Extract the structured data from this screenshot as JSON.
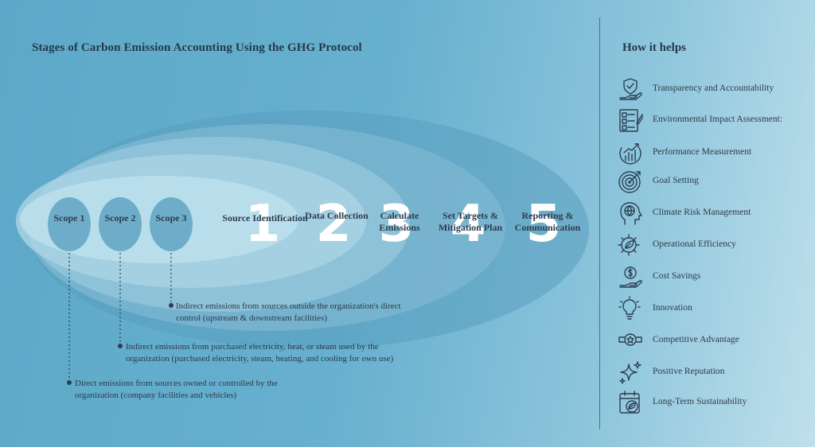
{
  "title": "Stages of Carbon Emission Accounting Using the GHG Protocol",
  "stages": [
    {
      "number": "1",
      "label": "Source Identification"
    },
    {
      "number": "2",
      "label": "Data Collection"
    },
    {
      "number": "3",
      "label": "Calculate Emissions"
    },
    {
      "number": "4",
      "label": "Set Targets & Mitigation Plan"
    },
    {
      "number": "5",
      "label": "Reporting & Communication"
    }
  ],
  "scopes": [
    {
      "label": "Scope 1",
      "description": "Direct emissions from sources owned or controlled by the organization (company facilities and vehicles)"
    },
    {
      "label": "Scope 2",
      "description": "Indirect emissions from purchased electricity, heat, or steam used by the organization (purchased electricity, steam, heating, and cooling for own use)"
    },
    {
      "label": "Scope 3",
      "description": "Indirect emissions from sources outside the organization's direct control (upstream & downstream facilities)"
    }
  ],
  "how_it_helps": {
    "title": "How it helps",
    "items": [
      {
        "label": "Transparency and Accountability",
        "icon": "shield-hand-icon"
      },
      {
        "label": "Environmental Impact Assessment:",
        "icon": "checklist-icon"
      },
      {
        "label": "Performance Measurement",
        "icon": "growth-chart-icon"
      },
      {
        "label": "Goal Setting",
        "icon": "target-icon"
      },
      {
        "label": "Climate Risk Management",
        "icon": "head-globe-icon"
      },
      {
        "label": "Operational Efficiency",
        "icon": "gear-leaf-icon"
      },
      {
        "label": "Cost Savings",
        "icon": "dollar-hand-icon"
      },
      {
        "label": "Innovation",
        "icon": "lightbulb-icon"
      },
      {
        "label": "Competitive Advantage",
        "icon": "award-badge-icon"
      },
      {
        "label": "Positive Reputation",
        "icon": "sparkle-icon"
      },
      {
        "label": "Long-Term Sustainability",
        "icon": "calendar-leaf-icon"
      }
    ]
  }
}
